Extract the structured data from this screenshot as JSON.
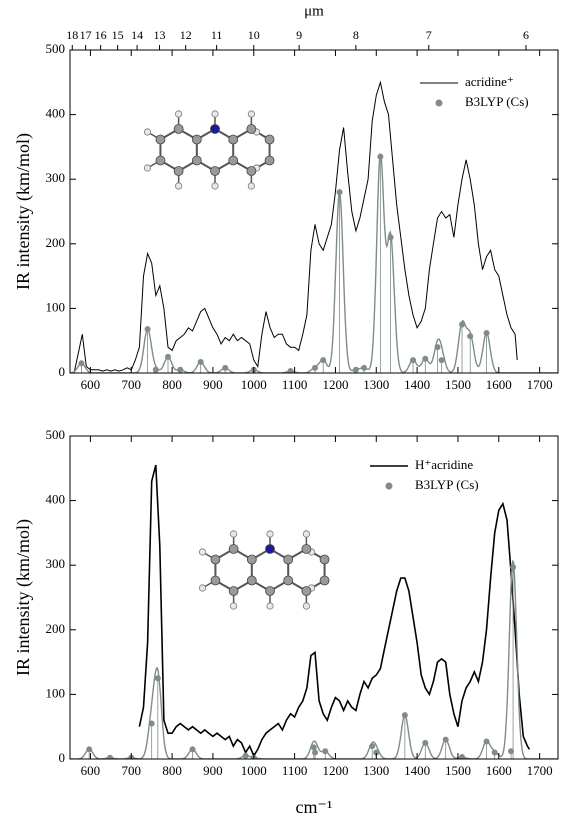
{
  "chart_data": [
    {
      "type": "line",
      "y_label": "IR intensity (km/mol)",
      "x2_label": "μm",
      "x2ticks": [
        18,
        17,
        16,
        15,
        14,
        13,
        12,
        11,
        10,
        9,
        8,
        7,
        6
      ],
      "xlim": [
        550,
        1745
      ],
      "ylim": [
        0,
        500
      ],
      "xticks": [
        600,
        700,
        800,
        900,
        1000,
        1100,
        1200,
        1300,
        1400,
        1500,
        1600,
        1700
      ],
      "yticks": [
        0,
        100,
        200,
        300,
        400,
        500
      ],
      "legend": "upper right",
      "series": [
        {
          "name": "acridine⁺",
          "color": "#000000",
          "style": "line",
          "x": [
            560,
            570,
            580,
            590,
            600,
            610,
            620,
            630,
            640,
            650,
            660,
            670,
            680,
            690,
            700,
            710,
            720,
            730,
            740,
            750,
            760,
            770,
            780,
            790,
            800,
            810,
            820,
            830,
            840,
            850,
            860,
            870,
            880,
            890,
            900,
            910,
            920,
            930,
            940,
            950,
            960,
            970,
            980,
            990,
            1000,
            1010,
            1020,
            1030,
            1040,
            1050,
            1060,
            1070,
            1080,
            1090,
            1100,
            1110,
            1120,
            1130,
            1140,
            1150,
            1160,
            1170,
            1180,
            1190,
            1200,
            1210,
            1220,
            1230,
            1240,
            1250,
            1260,
            1270,
            1280,
            1290,
            1300,
            1310,
            1320,
            1330,
            1340,
            1350,
            1360,
            1370,
            1380,
            1390,
            1400,
            1410,
            1420,
            1430,
            1440,
            1450,
            1460,
            1470,
            1480,
            1490,
            1500,
            1510,
            1520,
            1530,
            1540,
            1550,
            1560,
            1570,
            1580,
            1590,
            1600,
            1610,
            1620,
            1630,
            1640,
            1645
          ],
          "values": [
            0,
            30,
            60,
            10,
            5,
            5,
            5,
            3,
            5,
            3,
            5,
            3,
            5,
            8,
            5,
            20,
            40,
            150,
            185,
            170,
            120,
            135,
            100,
            40,
            35,
            50,
            55,
            60,
            70,
            65,
            80,
            95,
            100,
            85,
            70,
            60,
            45,
            55,
            50,
            60,
            50,
            55,
            50,
            45,
            20,
            10,
            60,
            95,
            70,
            55,
            60,
            60,
            45,
            40,
            40,
            35,
            60,
            90,
            190,
            230,
            200,
            190,
            210,
            230,
            280,
            345,
            380,
            310,
            250,
            220,
            240,
            270,
            300,
            390,
            430,
            450,
            420,
            400,
            330,
            260,
            210,
            160,
            120,
            90,
            70,
            80,
            100,
            160,
            200,
            240,
            250,
            240,
            245,
            210,
            260,
            300,
            330,
            300,
            260,
            200,
            160,
            180,
            190,
            160,
            150,
            120,
            90,
            70,
            60,
            20
          ]
        },
        {
          "name": "B3LYP (Cs)",
          "color": "#7f8c8a",
          "style": "sticks",
          "x": [
            578,
            740,
            760,
            790,
            820,
            870,
            930,
            1000,
            1090,
            1150,
            1170,
            1210,
            1250,
            1270,
            1310,
            1335,
            1390,
            1420,
            1450,
            1460,
            1510,
            1530,
            1570
          ],
          "values": [
            15,
            68,
            5,
            25,
            5,
            17,
            8,
            5,
            3,
            8,
            20,
            280,
            5,
            8,
            335,
            210,
            20,
            22,
            40,
            20,
            75,
            57,
            62
          ]
        }
      ]
    },
    {
      "type": "line",
      "y_label": "IR intensity (km/mol)",
      "x_label": "cm⁻¹",
      "xlim": [
        550,
        1745
      ],
      "ylim": [
        0,
        500
      ],
      "xticks": [
        600,
        700,
        800,
        900,
        1000,
        1100,
        1200,
        1300,
        1400,
        1500,
        1600,
        1700
      ],
      "yticks": [
        0,
        100,
        200,
        300,
        400,
        500
      ],
      "legend": "upper right",
      "series": [
        {
          "name": "H⁺acridine",
          "color": "#000000",
          "style": "line",
          "x": [
            720,
            730,
            740,
            750,
            760,
            770,
            780,
            790,
            800,
            810,
            820,
            830,
            840,
            850,
            860,
            870,
            880,
            890,
            900,
            910,
            920,
            930,
            940,
            950,
            960,
            970,
            980,
            990,
            1000,
            1010,
            1020,
            1030,
            1040,
            1050,
            1060,
            1070,
            1080,
            1090,
            1100,
            1110,
            1120,
            1130,
            1140,
            1150,
            1160,
            1170,
            1180,
            1190,
            1200,
            1210,
            1220,
            1230,
            1240,
            1250,
            1260,
            1270,
            1280,
            1290,
            1300,
            1310,
            1320,
            1330,
            1340,
            1350,
            1360,
            1370,
            1380,
            1390,
            1400,
            1410,
            1420,
            1430,
            1440,
            1450,
            1460,
            1470,
            1480,
            1490,
            1500,
            1510,
            1520,
            1530,
            1540,
            1550,
            1560,
            1570,
            1580,
            1590,
            1600,
            1610,
            1620,
            1630,
            1640,
            1650,
            1660,
            1670,
            1675
          ],
          "values": [
            50,
            80,
            180,
            430,
            455,
            330,
            60,
            40,
            40,
            50,
            55,
            50,
            45,
            50,
            45,
            40,
            45,
            40,
            35,
            40,
            35,
            30,
            35,
            20,
            30,
            25,
            10,
            20,
            5,
            15,
            30,
            40,
            45,
            50,
            55,
            45,
            60,
            70,
            65,
            80,
            90,
            110,
            160,
            165,
            90,
            70,
            60,
            80,
            95,
            90,
            75,
            90,
            80,
            75,
            100,
            120,
            110,
            125,
            130,
            140,
            170,
            200,
            230,
            260,
            280,
            280,
            260,
            220,
            180,
            130,
            110,
            100,
            120,
            150,
            155,
            150,
            100,
            70,
            50,
            90,
            110,
            120,
            135,
            120,
            150,
            200,
            280,
            350,
            385,
            395,
            370,
            290,
            200,
            100,
            35,
            20,
            15
          ]
        },
        {
          "name": "B3LYP (Cs)",
          "color": "#7f8c8a",
          "style": "sticks",
          "x": [
            597,
            648,
            700,
            750,
            765,
            850,
            980,
            1000,
            1147,
            1150,
            1175,
            1290,
            1300,
            1370,
            1420,
            1470,
            1510,
            1570,
            1590,
            1630,
            1635
          ],
          "values": [
            15,
            2,
            2,
            55,
            125,
            15,
            5,
            2,
            18,
            10,
            12,
            20,
            10,
            68,
            25,
            30,
            3,
            27,
            10,
            12,
            297
          ]
        }
      ]
    }
  ]
}
